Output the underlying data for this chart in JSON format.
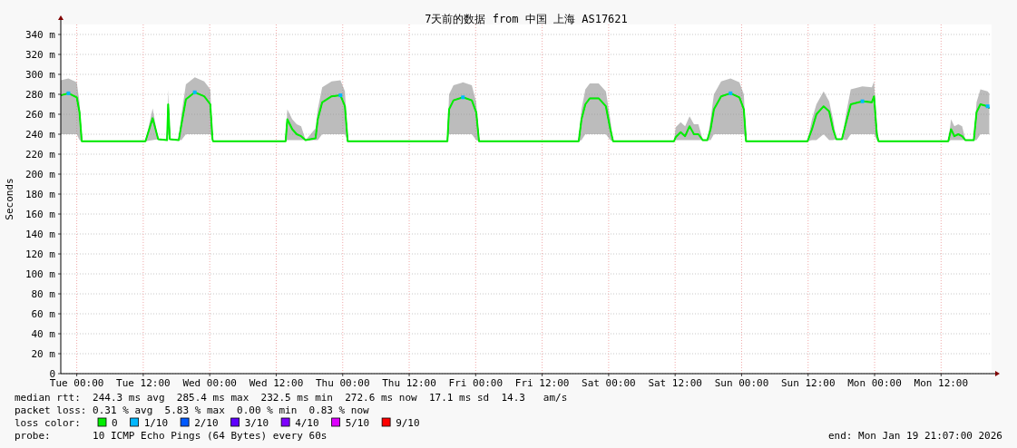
{
  "chart_data": {
    "type": "line",
    "title": "7天前的数据 from 中国 上海 AS17621",
    "ylabel": "Seconds",
    "legend_title": "loss color:",
    "x": [
      "2026-01-12T21:07",
      "2026-01-12T22:30",
      "2026-01-13T00:00",
      "2026-01-13T00:30",
      "2026-01-13T00:54",
      "2026-01-13T12:24",
      "2026-01-13T13:42",
      "2026-01-13T14:42",
      "2026-01-13T16:18",
      "2026-01-13T16:30",
      "2026-01-13T16:48",
      "2026-01-13T18:24",
      "2026-01-13T18:54",
      "2026-01-13T19:42",
      "2026-01-13T21:18",
      "2026-01-13T23:00",
      "2026-01-14T00:06",
      "2026-01-14T00:30",
      "2026-01-14T00:36",
      "2026-01-14T13:42",
      "2026-01-14T14:00",
      "2026-01-14T14:54",
      "2026-01-14T15:42",
      "2026-01-14T16:30",
      "2026-01-14T17:18",
      "2026-01-14T19:06",
      "2026-01-14T19:30",
      "2026-01-14T20:18",
      "2026-01-14T22:00",
      "2026-01-14T23:36",
      "2026-01-15T00:24",
      "2026-01-15T00:54",
      "2026-01-15T18:54",
      "2026-01-15T19:12",
      "2026-01-15T20:00",
      "2026-01-15T21:42",
      "2026-01-15T23:18",
      "2026-01-16T00:06",
      "2026-01-16T00:36",
      "2026-01-16T18:36",
      "2026-01-16T19:06",
      "2026-01-16T19:48",
      "2026-01-16T20:36",
      "2026-01-16T22:12",
      "2026-01-16T23:30",
      "2026-01-17T00:18",
      "2026-01-17T00:48",
      "2026-01-17T11:48",
      "2026-01-17T12:06",
      "2026-01-17T13:00",
      "2026-01-17T13:48",
      "2026-01-17T14:36",
      "2026-01-17T15:24",
      "2026-01-17T16:12",
      "2026-01-17T17:00",
      "2026-01-17T17:48",
      "2026-01-17T18:24",
      "2026-01-17T19:00",
      "2026-01-17T20:18",
      "2026-01-17T22:00",
      "2026-01-17T23:36",
      "2026-01-18T00:24",
      "2026-01-18T00:48",
      "2026-01-18T11:54",
      "2026-01-18T12:42",
      "2026-01-18T13:30",
      "2026-01-18T14:48",
      "2026-01-18T15:48",
      "2026-01-18T16:30",
      "2026-01-18T17:06",
      "2026-01-18T18:06",
      "2026-01-18T19:00",
      "2026-01-18T19:42",
      "2026-01-18T21:48",
      "2026-01-18T23:30",
      "2026-01-18T23:54",
      "2026-01-19T00:24",
      "2026-01-19T00:42",
      "2026-01-19T13:18",
      "2026-01-19T13:48",
      "2026-01-19T14:24",
      "2026-01-19T15:06",
      "2026-01-19T15:48",
      "2026-01-19T16:24",
      "2026-01-19T17:54",
      "2026-01-19T18:24",
      "2026-01-19T19:06",
      "2026-01-19T20:24",
      "2026-01-19T20:42"
    ],
    "series": [
      {
        "name": "0",
        "color": "#00ee00",
        "values": [
          279,
          281,
          277,
          262,
          233,
          233,
          256,
          235,
          234,
          270,
          235,
          234,
          250,
          275,
          282,
          278,
          270,
          235,
          233,
          233,
          255,
          245,
          240,
          238,
          234,
          236,
          255,
          272,
          278,
          279,
          268,
          233,
          233,
          265,
          274,
          277,
          274,
          262,
          233,
          233,
          255,
          270,
          276,
          276,
          268,
          245,
          233,
          233,
          237,
          242,
          238,
          248,
          240,
          240,
          234,
          234,
          245,
          265,
          278,
          281,
          277,
          265,
          233,
          233,
          245,
          260,
          268,
          263,
          245,
          235,
          235,
          255,
          270,
          273,
          272,
          278,
          240,
          233,
          233,
          245,
          238,
          240,
          238,
          234,
          234,
          262,
          270,
          268,
          266
        ],
        "upper": [
          294,
          296,
          292,
          272,
          233,
          233,
          266,
          235,
          234,
          285,
          235,
          234,
          260,
          290,
          297,
          293,
          285,
          235,
          233,
          233,
          265,
          255,
          250,
          248,
          234,
          246,
          265,
          287,
          293,
          294,
          283,
          233,
          233,
          280,
          289,
          292,
          289,
          272,
          233,
          233,
          265,
          285,
          291,
          291,
          283,
          255,
          233,
          233,
          247,
          252,
          248,
          258,
          250,
          250,
          234,
          234,
          255,
          280,
          293,
          296,
          292,
          280,
          233,
          233,
          255,
          270,
          283,
          273,
          255,
          235,
          235,
          265,
          285,
          288,
          287,
          293,
          250,
          233,
          233,
          255,
          248,
          250,
          248,
          234,
          234,
          272,
          285,
          283,
          281
        ],
        "lower": [
          240,
          240,
          240,
          234,
          233,
          233,
          234,
          235,
          234,
          240,
          235,
          234,
          234,
          240,
          240,
          240,
          240,
          235,
          233,
          233,
          234,
          234,
          234,
          234,
          234,
          234,
          234,
          240,
          240,
          240,
          240,
          233,
          233,
          240,
          240,
          240,
          240,
          234,
          233,
          233,
          234,
          240,
          240,
          240,
          240,
          234,
          233,
          233,
          234,
          234,
          234,
          234,
          234,
          234,
          234,
          234,
          234,
          240,
          240,
          240,
          240,
          240,
          233,
          233,
          234,
          234,
          240,
          234,
          234,
          235,
          235,
          234,
          240,
          240,
          240,
          240,
          234,
          233,
          233,
          234,
          234,
          234,
          234,
          234,
          234,
          234,
          240,
          240,
          240
        ]
      },
      {
        "name": "1/10",
        "color": "#00b8ff",
        "type": "scatter",
        "marker": "square",
        "x": [
          "2026-01-12T22:30",
          "2026-01-13T21:18",
          "2026-01-14T23:36",
          "2026-01-15T21:42",
          "2026-01-17T22:00",
          "2026-01-18T21:48",
          "2026-01-19T20:24"
        ],
        "values": [
          281,
          282,
          279,
          277,
          281,
          273,
          268
        ]
      },
      {
        "name": "2/10",
        "color": "#0059ff",
        "type": "scatter",
        "values": [
          null,
          null,
          null,
          null,
          null,
          null,
          null,
          null,
          null,
          null,
          null,
          null,
          null,
          null,
          null,
          null,
          null,
          null,
          null,
          null,
          null,
          null,
          null,
          null,
          null,
          null,
          null,
          null,
          null,
          null,
          null,
          null,
          null,
          null,
          null,
          null,
          null,
          null,
          null,
          null,
          null,
          null,
          null,
          null,
          null,
          null,
          null,
          null,
          null,
          null,
          null,
          null,
          null,
          null,
          null,
          null,
          null,
          null,
          null,
          null,
          null,
          null,
          null,
          null,
          null,
          null,
          null,
          null,
          null,
          null,
          null,
          null,
          null,
          null,
          null,
          null,
          null,
          null,
          null,
          null,
          null,
          null,
          null,
          null,
          null,
          null,
          null,
          null,
          null
        ]
      },
      {
        "name": "3/10",
        "color": "#5e00ff",
        "type": "scatter",
        "values": [
          null,
          null,
          null,
          null,
          null,
          null,
          null,
          null,
          null,
          null,
          null,
          null,
          null,
          null,
          null,
          null,
          null,
          null,
          null,
          null,
          null,
          null,
          null,
          null,
          null,
          null,
          null,
          null,
          null,
          null,
          null,
          null,
          null,
          null,
          null,
          null,
          null,
          null,
          null,
          null,
          null,
          null,
          null,
          null,
          null,
          null,
          null,
          null,
          null,
          null,
          null,
          null,
          null,
          null,
          null,
          null,
          null,
          null,
          null,
          null,
          null,
          null,
          null,
          null,
          null,
          null,
          null,
          null,
          null,
          null,
          null,
          null,
          null,
          null,
          null,
          null,
          null,
          null,
          null,
          null,
          null,
          null,
          null,
          null,
          null,
          null,
          null,
          null,
          null
        ]
      },
      {
        "name": "4/10",
        "color": "#7e00ff",
        "type": "scatter",
        "values": [
          null,
          null,
          null,
          null,
          null,
          null,
          null,
          null,
          null,
          null,
          null,
          null,
          null,
          null,
          null,
          null,
          null,
          null,
          null,
          null,
          null,
          null,
          null,
          null,
          null,
          null,
          null,
          null,
          null,
          null,
          null,
          null,
          null,
          null,
          null,
          null,
          null,
          null,
          null,
          null,
          null,
          null,
          null,
          null,
          null,
          null,
          null,
          null,
          null,
          null,
          null,
          null,
          null,
          null,
          null,
          null,
          null,
          null,
          null,
          null,
          null,
          null,
          null,
          null,
          null,
          null,
          null,
          null,
          null,
          null,
          null,
          null,
          null,
          null,
          null,
          null,
          null,
          null,
          null,
          null,
          null,
          null,
          null,
          null,
          null,
          null,
          null,
          null,
          null
        ]
      },
      {
        "name": "5/10",
        "color": "#dd00ff",
        "type": "scatter",
        "values": [
          null,
          null,
          null,
          null,
          null,
          null,
          null,
          null,
          null,
          null,
          null,
          null,
          null,
          null,
          null,
          null,
          null,
          null,
          null,
          null,
          null,
          null,
          null,
          null,
          null,
          null,
          null,
          null,
          null,
          null,
          null,
          null,
          null,
          null,
          null,
          null,
          null,
          null,
          null,
          null,
          null,
          null,
          null,
          null,
          null,
          null,
          null,
          null,
          null,
          null,
          null,
          null,
          null,
          null,
          null,
          null,
          null,
          null,
          null,
          null,
          null,
          null,
          null,
          null,
          null,
          null,
          null,
          null,
          null,
          null,
          null,
          null,
          null,
          null,
          null,
          null,
          null,
          null,
          null,
          null,
          null,
          null,
          null,
          null,
          null,
          null,
          null,
          null,
          null
        ]
      },
      {
        "name": "9/10",
        "color": "#ff0000",
        "type": "scatter",
        "values": [
          null,
          null,
          null,
          null,
          null,
          null,
          null,
          null,
          null,
          null,
          null,
          null,
          null,
          null,
          null,
          null,
          null,
          null,
          null,
          null,
          null,
          null,
          null,
          null,
          null,
          null,
          null,
          null,
          null,
          null,
          null,
          null,
          null,
          null,
          null,
          null,
          null,
          null,
          null,
          null,
          null,
          null,
          null,
          null,
          null,
          null,
          null,
          null,
          null,
          null,
          null,
          null,
          null,
          null,
          null,
          null,
          null,
          null,
          null,
          null,
          null,
          null,
          null,
          null,
          null,
          null,
          null,
          null,
          null,
          null,
          null,
          null,
          null,
          null,
          null,
          null,
          null,
          null,
          null,
          null,
          null,
          null,
          null,
          null,
          null,
          null,
          null,
          null,
          null
        ]
      }
    ],
    "xlim": [
      "2026-01-12T21:07",
      "2026-01-19T21:07"
    ],
    "xticks": [
      {
        "value": "2026-01-13T00:00",
        "label": "Tue 00:00"
      },
      {
        "value": "2026-01-13T12:00",
        "label": "Tue 12:00"
      },
      {
        "value": "2026-01-14T00:00",
        "label": "Wed 00:00"
      },
      {
        "value": "2026-01-14T12:00",
        "label": "Wed 12:00"
      },
      {
        "value": "2026-01-15T00:00",
        "label": "Thu 00:00"
      },
      {
        "value": "2026-01-15T12:00",
        "label": "Thu 12:00"
      },
      {
        "value": "2026-01-16T00:00",
        "label": "Fri 00:00"
      },
      {
        "value": "2026-01-16T12:00",
        "label": "Fri 12:00"
      },
      {
        "value": "2026-01-17T00:00",
        "label": "Sat 00:00"
      },
      {
        "value": "2026-01-17T12:00",
        "label": "Sat 12:00"
      },
      {
        "value": "2026-01-18T00:00",
        "label": "Sun 00:00"
      },
      {
        "value": "2026-01-18T12:00",
        "label": "Sun 12:00"
      },
      {
        "value": "2026-01-19T00:00",
        "label": "Mon 00:00"
      },
      {
        "value": "2026-01-19T12:00",
        "label": "Mon 12:00"
      }
    ],
    "ylim": [
      0,
      350
    ],
    "yticks": [
      0,
      {
        "value": 20,
        "label": "20 m"
      },
      {
        "value": 40,
        "label": "40 m"
      },
      {
        "value": 60,
        "label": "60 m"
      },
      {
        "value": 80,
        "label": "80 m"
      },
      {
        "value": 100,
        "label": "100 m"
      },
      {
        "value": 120,
        "label": "120 m"
      },
      {
        "value": 140,
        "label": "140 m"
      },
      {
        "value": 160,
        "label": "160 m"
      },
      {
        "value": 180,
        "label": "180 m"
      },
      {
        "value": 200,
        "label": "200 m"
      },
      {
        "value": 220,
        "label": "220 m"
      },
      {
        "value": 240,
        "label": "240 m"
      },
      {
        "value": 260,
        "label": "260 m"
      },
      {
        "value": 280,
        "label": "280 m"
      },
      {
        "value": 300,
        "label": "300 m"
      },
      {
        "value": 320,
        "label": "320 m"
      },
      {
        "value": 340,
        "label": "340 m"
      }
    ],
    "grid": true,
    "legend": "bottom",
    "marker": "none",
    "line_style": "solid",
    "annotations": [
      "median rtt:  244.3 ms avg  285.4 ms max  232.5 ms min  272.6 ms now  17.1 ms sd  14.3   am/s",
      "packet loss: 0.31 % avg  5.83 % max  0.00 % min  0.83 % now",
      "probe:       10 ICMP Echo Pings (64 Bytes) every 60s",
      "end: Mon Jan 19 21:07:00 2026"
    ]
  }
}
